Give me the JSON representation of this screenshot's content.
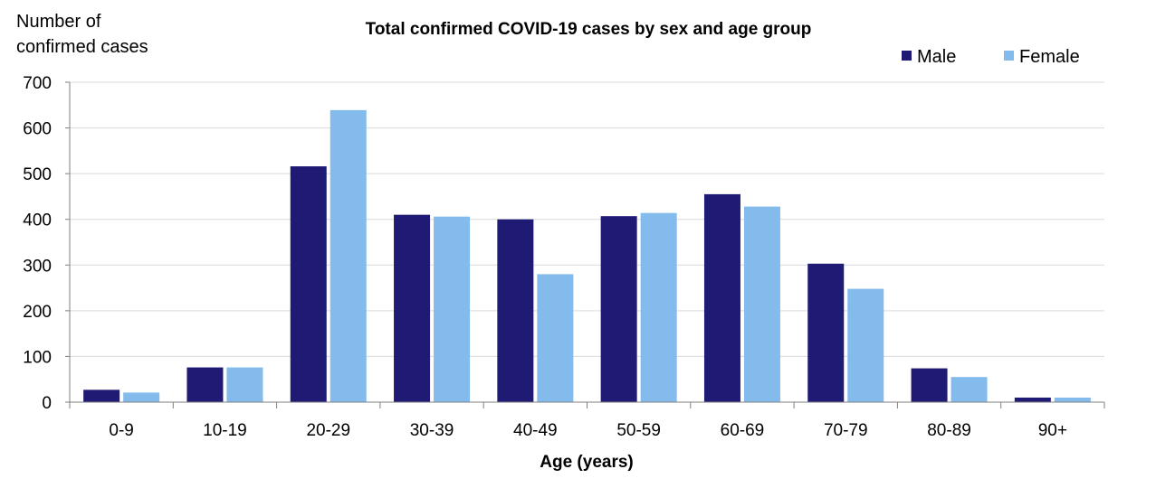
{
  "chart_data": {
    "type": "bar",
    "title": "Total confirmed COVID-19 cases by sex and age group",
    "ylabel_lines": [
      "Number of",
      "confirmed cases"
    ],
    "xlabel": "Age (years)",
    "categories": [
      "0-9",
      "10-19",
      "20-29",
      "30-39",
      "40-49",
      "50-59",
      "60-69",
      "70-79",
      "80-89",
      "90+"
    ],
    "yticks": [
      "0",
      "100",
      "200",
      "300",
      "400",
      "500",
      "600",
      "700"
    ],
    "ylim": [
      0,
      700
    ],
    "grid": true,
    "legend_position": "top-right",
    "series": [
      {
        "name": "Male",
        "color": "#1F1A74",
        "values": [
          27,
          76,
          516,
          410,
          400,
          407,
          455,
          303,
          74,
          10
        ]
      },
      {
        "name": "Female",
        "color": "#83BCEC",
        "values": [
          21,
          76,
          639,
          406,
          280,
          414,
          428,
          248,
          55,
          10
        ]
      }
    ]
  }
}
